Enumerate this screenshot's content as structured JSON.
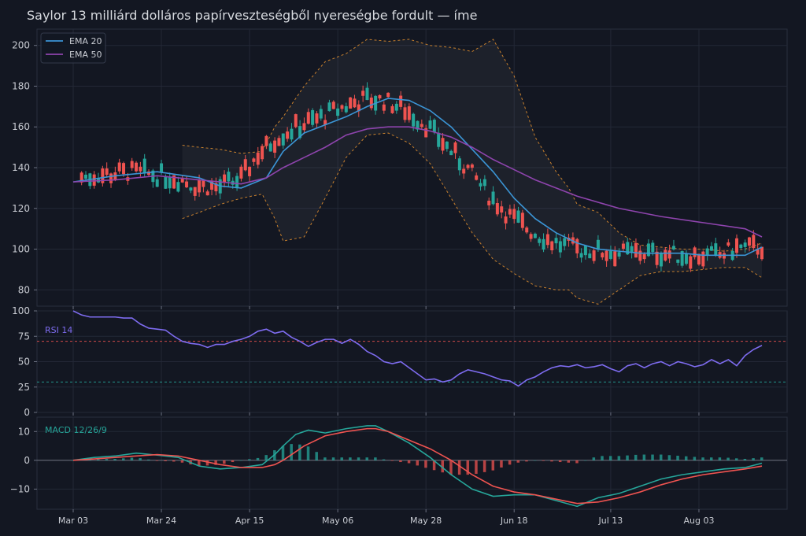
{
  "title": "Saylor 13 milliárd dolláros papírveszteségből nyereségbe fordult — íme",
  "colors": {
    "background": "#131722",
    "grid": "#232836",
    "text": "#c9ccd3",
    "up": "#26a69a",
    "down": "#ef5350",
    "ema20": "#3b95d6",
    "ema50": "#8e44ad",
    "band": "#c8802d",
    "rsi": "#7e6cf0",
    "macd": "#26a69a",
    "signal": "#ef5350"
  },
  "chart_data": [
    {
      "type": "candlestick",
      "title": "Saylor 13 milliárd dolláros papírveszteségből nyereségbe fordult — íme",
      "x_ticks": [
        "Mar 03",
        "Mar 24",
        "Apr 15",
        "May 06",
        "May 28",
        "Jun 18",
        "Jul 13",
        "Aug 03"
      ],
      "y_ticks": [
        80,
        100,
        120,
        140,
        160,
        180,
        200
      ],
      "ylim": [
        72,
        208
      ],
      "legend": {
        "position": "top-left",
        "items": [
          "EMA 20",
          "EMA 50"
        ]
      },
      "series": [
        {
          "name": "EMA 20",
          "x": [
            0,
            10,
            20,
            30,
            35,
            40,
            46,
            50,
            55,
            60,
            65,
            70,
            75,
            80,
            85,
            90,
            95,
            100,
            105,
            110,
            115,
            120,
            125,
            130,
            135,
            140,
            145,
            150,
            155,
            160,
            164
          ],
          "values": [
            133,
            136,
            138,
            135,
            131,
            130,
            135,
            148,
            157,
            161,
            165,
            170,
            174,
            173,
            168,
            160,
            149,
            138,
            125,
            115,
            108,
            103,
            100,
            99,
            98,
            98,
            98,
            97,
            97,
            97,
            101
          ]
        },
        {
          "name": "EMA 50",
          "x": [
            0,
            10,
            20,
            30,
            40,
            46,
            50,
            55,
            60,
            65,
            70,
            75,
            80,
            85,
            90,
            95,
            100,
            105,
            110,
            115,
            120,
            130,
            140,
            150,
            160,
            164
          ],
          "values": [
            133,
            134,
            136,
            134,
            132,
            135,
            140,
            145,
            150,
            156,
            159,
            160,
            160,
            158,
            155,
            150,
            144,
            139,
            134,
            130,
            126,
            120,
            116,
            113,
            110,
            106
          ]
        }
      ],
      "bollinger": {
        "x": [
          26,
          30,
          35,
          40,
          45,
          48,
          50,
          55,
          60,
          65,
          70,
          75,
          80,
          85,
          90,
          95,
          100,
          105,
          110,
          115,
          118,
          120,
          125,
          130,
          135,
          140,
          145,
          150,
          155,
          160,
          164
        ],
        "upper": [
          151,
          150,
          149,
          147,
          148,
          160,
          165,
          180,
          192,
          196,
          203,
          202,
          203,
          200,
          199,
          197,
          203,
          185,
          155,
          138,
          130,
          122,
          118,
          108,
          102,
          101,
          100,
          100,
          99,
          100,
          103
        ],
        "lower": [
          115,
          118,
          122,
          125,
          127,
          115,
          104,
          106,
          125,
          145,
          156,
          157,
          152,
          142,
          125,
          108,
          95,
          88,
          82,
          80,
          80,
          76,
          73,
          80,
          87,
          89,
          89,
          90,
          91,
          91,
          86
        ]
      }
    },
    {
      "type": "line",
      "title": "RSI 14",
      "y_ticks": [
        0,
        25,
        50,
        75,
        100
      ],
      "ylim": [
        0,
        100
      ],
      "levels": [
        70,
        30
      ],
      "x": [
        0,
        2,
        4,
        6,
        8,
        10,
        12,
        14,
        16,
        18,
        20,
        22,
        24,
        26,
        28,
        30,
        32,
        34,
        36,
        38,
        40,
        42,
        44,
        46,
        48,
        50,
        52,
        54,
        56,
        58,
        60,
        62,
        64,
        66,
        68,
        70,
        72,
        74,
        76,
        78,
        80,
        82,
        84,
        86,
        88,
        90,
        92,
        94,
        96,
        98,
        100,
        102,
        104,
        106,
        108,
        110,
        112,
        114,
        116,
        118,
        120,
        122,
        124,
        126,
        128,
        130,
        132,
        134,
        136,
        138,
        140,
        142,
        144,
        146,
        148,
        150,
        152,
        154,
        156,
        158,
        160,
        162,
        164
      ],
      "values": [
        100,
        96,
        94,
        94,
        94,
        94,
        93,
        93,
        87,
        83,
        82,
        81,
        75,
        70,
        68,
        67,
        64,
        67,
        67,
        70,
        72,
        75,
        80,
        82,
        78,
        80,
        74,
        70,
        65,
        69,
        72,
        72,
        68,
        72,
        67,
        60,
        56,
        50,
        48,
        50,
        44,
        38,
        32,
        33,
        30,
        32,
        38,
        42,
        40,
        38,
        35,
        32,
        31,
        26,
        32,
        35,
        40,
        44,
        46,
        45,
        47,
        44,
        45,
        47,
        43,
        40,
        46,
        48,
        44,
        48,
        50,
        46,
        50,
        48,
        45,
        47,
        52,
        48,
        52,
        46,
        56,
        62,
        66
      ]
    },
    {
      "type": "line",
      "title": "MACD 12/26/9",
      "y_ticks": [
        -10,
        0,
        10
      ],
      "ylim": [
        -17,
        15
      ],
      "series": [
        {
          "name": "MACD",
          "x": [
            0,
            5,
            10,
            15,
            20,
            25,
            30,
            35,
            40,
            45,
            48,
            50,
            53,
            56,
            60,
            65,
            70,
            72,
            75,
            80,
            85,
            90,
            95,
            100,
            105,
            110,
            115,
            120,
            125,
            130,
            135,
            140,
            145,
            150,
            155,
            160,
            164
          ],
          "values": [
            0,
            1,
            1.5,
            2.5,
            1.8,
            1,
            -2,
            -3,
            -2.5,
            -1.5,
            2,
            5,
            9,
            10.5,
            9.5,
            11,
            12,
            12,
            10,
            6,
            1,
            -5,
            -10,
            -12.5,
            -12,
            -12,
            -14,
            -16,
            -13,
            -11.5,
            -9,
            -6.5,
            -5,
            -4,
            -3,
            -2.5,
            -1
          ]
        },
        {
          "name": "Signal",
          "x": [
            0,
            5,
            10,
            15,
            20,
            25,
            30,
            35,
            40,
            45,
            48,
            50,
            55,
            60,
            65,
            70,
            72,
            75,
            80,
            85,
            90,
            95,
            100,
            105,
            110,
            115,
            120,
            125,
            130,
            135,
            140,
            145,
            150,
            155,
            160,
            164
          ],
          "values": [
            0,
            0.5,
            1,
            1.5,
            2,
            1.5,
            0,
            -1.5,
            -2.5,
            -2.5,
            -1.5,
            0,
            5,
            8.5,
            10,
            11,
            11,
            10,
            7,
            4,
            0,
            -5,
            -9,
            -11,
            -12,
            -13.5,
            -15,
            -14.5,
            -13,
            -11,
            -8.5,
            -6.5,
            -5,
            -4,
            -3,
            -2
          ]
        }
      ]
    }
  ]
}
